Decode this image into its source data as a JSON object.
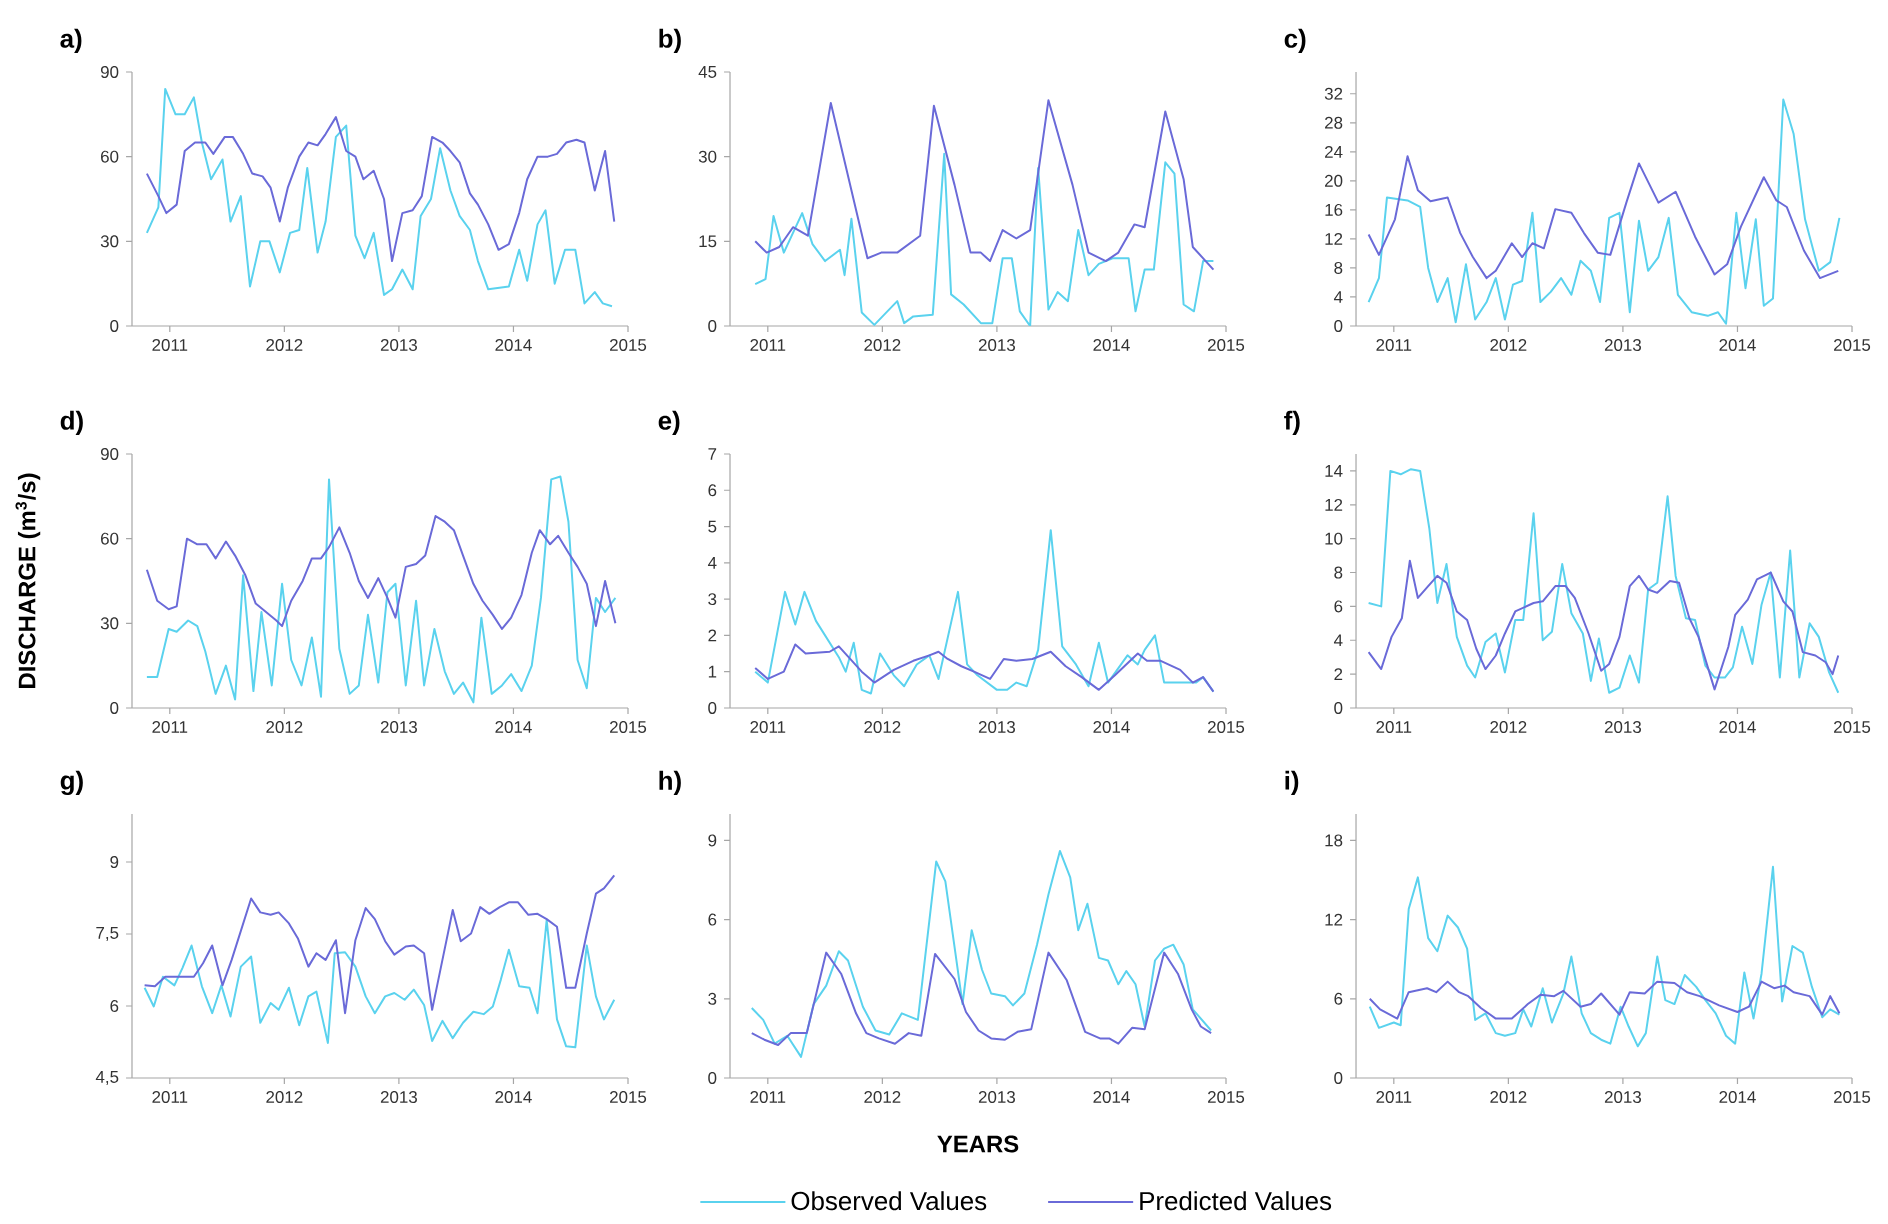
{
  "chart_data": [
    {
      "type": "line",
      "title": "a)",
      "xlim": [
        2010.67,
        2015
      ],
      "xticks": [
        2011,
        2012,
        2013,
        2014,
        2015
      ],
      "ylim": [
        0,
        90
      ],
      "yticks": [
        0,
        30,
        60,
        90
      ],
      "series": [
        {
          "color": "#5ad2ee",
          "x": [
            2010.8,
            2010.9,
            2010.96,
            2011.05,
            2011.13,
            2011.21,
            2011.28,
            2011.36,
            2011.46,
            2011.53,
            2011.62,
            2011.7,
            2011.79,
            2011.87,
            2011.96,
            2012.05,
            2012.13,
            2012.2,
            2012.29,
            2012.36,
            2012.45,
            2012.54,
            2012.62,
            2012.7,
            2012.78,
            2012.87,
            2012.94,
            2013.03,
            2013.12,
            2013.19,
            2013.28,
            2013.36,
            2013.45,
            2013.53,
            2013.62,
            2013.69,
            2013.78,
            2013.96,
            2014.05,
            2014.12,
            2014.21,
            2014.28,
            2014.36,
            2014.45,
            2014.54,
            2014.62,
            2014.71,
            2014.78,
            2014.86
          ],
          "values": [
            33,
            42,
            84,
            75,
            75,
            81,
            65,
            52,
            59,
            37,
            46,
            14,
            30,
            30,
            19,
            33,
            34,
            56,
            26,
            37,
            67,
            71,
            32,
            24,
            33,
            11,
            13,
            20,
            13,
            39,
            45,
            63,
            48,
            39,
            34,
            23,
            13,
            14,
            27,
            16,
            36,
            41,
            15,
            27,
            27,
            8,
            12,
            8,
            7
          ]
        },
        {
          "color": "#6a6ad8",
          "x": [
            2010.8,
            2010.9,
            2010.97,
            2011.06,
            2011.13,
            2011.22,
            2011.31,
            2011.38,
            2011.48,
            2011.55,
            2011.64,
            2011.72,
            2011.81,
            2011.88,
            2011.96,
            2012.03,
            2012.13,
            2012.21,
            2012.29,
            2012.36,
            2012.45,
            2012.54,
            2012.62,
            2012.69,
            2012.78,
            2012.87,
            2012.94,
            2013.03,
            2013.12,
            2013.2,
            2013.29,
            2013.38,
            2013.45,
            2013.53,
            2013.62,
            2013.69,
            2013.78,
            2013.87,
            2013.96,
            2014.05,
            2014.12,
            2014.21,
            2014.3,
            2014.38,
            2014.46,
            2014.55,
            2014.62,
            2014.71,
            2014.8,
            2014.88
          ],
          "values": [
            54,
            46,
            40,
            43,
            62,
            65,
            65,
            61,
            67,
            67,
            61,
            54,
            53,
            49,
            37,
            49,
            60,
            65,
            64,
            68,
            74,
            62,
            60,
            52,
            55,
            45,
            23,
            40,
            41,
            46,
            67,
            65,
            62,
            58,
            47,
            43,
            36,
            27,
            29,
            40,
            52,
            60,
            60,
            61,
            65,
            66,
            65,
            48,
            62,
            37
          ]
        }
      ]
    },
    {
      "type": "line",
      "title": "b)",
      "xlim": [
        2010.67,
        2015
      ],
      "xticks": [
        2011,
        2012,
        2013,
        2014,
        2015
      ],
      "ylim": [
        0,
        45
      ],
      "yticks": [
        0,
        15,
        30,
        45
      ],
      "series": [
        {
          "color": "#5ad2ee",
          "x": [
            2010.89,
            2010.98,
            2011.05,
            2011.14,
            2011.3,
            2011.39,
            2011.5,
            2011.63,
            2011.67,
            2011.73,
            2011.82,
            2011.93,
            2012.13,
            2012.19,
            2012.27,
            2012.44,
            2012.54,
            2012.6,
            2012.71,
            2012.86,
            2012.96,
            2013.05,
            2013.13,
            2013.2,
            2013.29,
            2013.36,
            2013.45,
            2013.53,
            2013.62,
            2013.71,
            2013.8,
            2013.89,
            2014.01,
            2014.15,
            2014.21,
            2014.29,
            2014.37,
            2014.47,
            2014.55,
            2014.63,
            2014.72,
            2014.8,
            2014.89
          ],
          "values": [
            7.4,
            8.3,
            19.5,
            13,
            20,
            14.5,
            11.5,
            13.5,
            9,
            19,
            2.4,
            0.2,
            4.4,
            0.5,
            1.7,
            2,
            30.5,
            5.6,
            3.8,
            0.5,
            0.5,
            12,
            12,
            2.6,
            0,
            28,
            2.9,
            6,
            4.4,
            17,
            9,
            11,
            12,
            12,
            2.6,
            10,
            10,
            29,
            27,
            3.8,
            2.6,
            11.5,
            11.5
          ]
        },
        {
          "color": "#6a6ad8",
          "x": [
            2010.89,
            2010.99,
            2011.1,
            2011.22,
            2011.35,
            2011.55,
            2011.87,
            2011.99,
            2012.13,
            2012.33,
            2012.45,
            2012.63,
            2012.77,
            2012.86,
            2012.94,
            2013.05,
            2013.17,
            2013.29,
            2013.45,
            2013.66,
            2013.8,
            2013.95,
            2014.06,
            2014.2,
            2014.29,
            2014.47,
            2014.63,
            2014.71,
            2014.89
          ],
          "values": [
            15,
            13,
            14,
            17.5,
            16,
            39.5,
            12,
            13,
            13,
            16,
            39,
            25,
            13,
            13,
            11.5,
            17,
            15.5,
            17,
            40,
            25,
            13,
            11.5,
            13,
            18,
            17.5,
            38,
            26,
            14,
            10
          ]
        }
      ]
    },
    {
      "type": "line",
      "title": "c)",
      "xlim": [
        2010.67,
        2015
      ],
      "xticks": [
        2011,
        2012,
        2013,
        2014,
        2015
      ],
      "ylim": [
        0,
        35
      ],
      "yticks": [
        0,
        4,
        8,
        12,
        16,
        20,
        24,
        28,
        32
      ],
      "series": [
        {
          "color": "#5ad2ee",
          "x": [
            2010.78,
            2010.87,
            2010.94,
            2011.12,
            2011.23,
            2011.3,
            2011.38,
            2011.47,
            2011.54,
            2011.63,
            2011.71,
            2011.81,
            2011.89,
            2011.97,
            2012.04,
            2012.12,
            2012.21,
            2012.28,
            2012.37,
            2012.46,
            2012.55,
            2012.63,
            2012.72,
            2012.8,
            2012.88,
            2012.97,
            2013.06,
            2013.14,
            2013.22,
            2013.31,
            2013.4,
            2013.48,
            2013.6,
            2013.74,
            2013.83,
            2013.9,
            2013.99,
            2014.07,
            2014.16,
            2014.23,
            2014.31,
            2014.4,
            2014.49,
            2014.59,
            2014.71,
            2014.81,
            2014.89
          ],
          "values": [
            3.3,
            6.6,
            17.7,
            17.3,
            16.4,
            8,
            3.3,
            6.6,
            0.5,
            8.5,
            0.9,
            3.3,
            6.6,
            0.9,
            5.7,
            6.2,
            15.6,
            3.3,
            4.7,
            6.6,
            4.3,
            9,
            7.6,
            3.3,
            14.9,
            15.6,
            1.9,
            14.5,
            7.6,
            9.5,
            14.9,
            4.3,
            1.9,
            1.4,
            1.9,
            0.3,
            15.6,
            5.2,
            14.7,
            2.8,
            3.8,
            31.2,
            26.5,
            14.7,
            7.6,
            8.8,
            14.9
          ]
        },
        {
          "color": "#6a6ad8",
          "x": [
            2010.78,
            2010.87,
            2011.01,
            2011.12,
            2011.21,
            2011.32,
            2011.47,
            2011.58,
            2011.69,
            2011.81,
            2011.89,
            2012.03,
            2012.12,
            2012.21,
            2012.31,
            2012.41,
            2012.55,
            2012.66,
            2012.78,
            2012.89,
            2013.03,
            2013.14,
            2013.31,
            2013.46,
            2013.63,
            2013.8,
            2013.91,
            2014.03,
            2014.23,
            2014.34,
            2014.43,
            2014.58,
            2014.72,
            2014.88
          ],
          "values": [
            12.6,
            9.8,
            14.7,
            23.4,
            18.7,
            17.2,
            17.7,
            12.8,
            9.5,
            6.6,
            7.6,
            11.4,
            9.5,
            11.4,
            10.7,
            16.1,
            15.6,
            12.8,
            10.1,
            9.8,
            17,
            22.4,
            17,
            18.5,
            12.3,
            7.1,
            8.5,
            13.7,
            20.5,
            17.3,
            16.4,
            10.4,
            6.6,
            7.6
          ]
        }
      ]
    },
    {
      "type": "line",
      "title": "d)",
      "ylabel": "DISCHARGE (m$^{3}$/s)",
      "xlim": [
        2010.67,
        2015
      ],
      "xticks": [
        2011,
        2012,
        2013,
        2014,
        2015
      ],
      "ylim": [
        0,
        90
      ],
      "yticks": [
        0,
        30,
        60,
        90
      ],
      "series": [
        {
          "color": "#5ad2ee",
          "x": [
            2010.8,
            2010.89,
            2010.99,
            2011.06,
            2011.16,
            2011.24,
            2011.31,
            2011.4,
            2011.49,
            2011.57,
            2011.64,
            2011.73,
            2011.8,
            2011.89,
            2011.98,
            2012.06,
            2012.15,
            2012.24,
            2012.32,
            2012.39,
            2012.48,
            2012.57,
            2012.65,
            2012.73,
            2012.82,
            2012.9,
            2012.97,
            2013.06,
            2013.15,
            2013.22,
            2013.31,
            2013.4,
            2013.48,
            2013.56,
            2013.65,
            2013.72,
            2013.81,
            2013.9,
            2013.98,
            2014.07,
            2014.16,
            2014.24,
            2014.33,
            2014.41,
            2014.48,
            2014.56,
            2014.64,
            2014.72,
            2014.8,
            2014.89
          ],
          "values": [
            11,
            11,
            28,
            27,
            31,
            29,
            20,
            5,
            15,
            3,
            47,
            6,
            34,
            8,
            44,
            17,
            8,
            25,
            4,
            81,
            21,
            5,
            8,
            33,
            9,
            41,
            44,
            8,
            38,
            8,
            28,
            13,
            5,
            9,
            2,
            32,
            5,
            8,
            12,
            6,
            15,
            39,
            81,
            82,
            66,
            17,
            7,
            39,
            34,
            39
          ]
        },
        {
          "color": "#6a6ad8",
          "x": [
            2010.8,
            2010.89,
            2010.99,
            2011.06,
            2011.15,
            2011.24,
            2011.32,
            2011.4,
            2011.49,
            2011.57,
            2011.66,
            2011.75,
            2011.84,
            2011.93,
            2011.98,
            2012.06,
            2012.16,
            2012.24,
            2012.32,
            2012.39,
            2012.48,
            2012.57,
            2012.65,
            2012.73,
            2012.82,
            2012.9,
            2012.97,
            2013.06,
            2013.15,
            2013.23,
            2013.32,
            2013.4,
            2013.48,
            2013.56,
            2013.65,
            2013.73,
            2013.82,
            2013.9,
            2013.98,
            2014.07,
            2014.16,
            2014.23,
            2014.32,
            2014.39,
            2014.48,
            2014.56,
            2014.64,
            2014.72,
            2014.8,
            2014.89
          ],
          "values": [
            49,
            38,
            35,
            36,
            60,
            58,
            58,
            53,
            59,
            54,
            47,
            37,
            34,
            31,
            29,
            38,
            45,
            53,
            53,
            57,
            64,
            55,
            45,
            39,
            46,
            39,
            32,
            50,
            51,
            54,
            68,
            66,
            63,
            54,
            44,
            38,
            33,
            28,
            32,
            40,
            55,
            63,
            58,
            61,
            55,
            50,
            44,
            29,
            45,
            30
          ]
        }
      ]
    },
    {
      "type": "line",
      "title": "e)",
      "xlim": [
        2010.67,
        2015
      ],
      "xticks": [
        2011,
        2012,
        2013,
        2014,
        2015
      ],
      "ylim": [
        0,
        7
      ],
      "yticks": [
        0,
        1,
        2,
        3,
        4,
        5,
        6,
        7
      ],
      "series": [
        {
          "color": "#5ad2ee",
          "x": [
            2010.89,
            2011.0,
            2011.15,
            2011.24,
            2011.32,
            2011.42,
            2011.62,
            2011.68,
            2011.75,
            2011.82,
            2011.9,
            2011.98,
            2012.1,
            2012.19,
            2012.3,
            2012.41,
            2012.49,
            2012.66,
            2012.74,
            2012.83,
            2013.0,
            2013.09,
            2013.17,
            2013.26,
            2013.36,
            2013.47,
            2013.57,
            2013.69,
            2013.8,
            2013.89,
            2013.97,
            2014.14,
            2014.23,
            2014.29,
            2014.38,
            2014.46,
            2014.66,
            2014.74,
            2014.8,
            2014.89
          ],
          "values": [
            1.0,
            0.7,
            3.2,
            2.3,
            3.2,
            2.4,
            1.4,
            1.0,
            1.8,
            0.5,
            0.4,
            1.5,
            0.9,
            0.6,
            1.2,
            1.45,
            0.8,
            3.2,
            1.2,
            0.9,
            0.5,
            0.5,
            0.7,
            0.6,
            1.6,
            4.9,
            1.7,
            1.2,
            0.6,
            1.8,
            0.7,
            1.45,
            1.2,
            1.6,
            2.0,
            0.7,
            0.7,
            0.7,
            0.85,
            0.45
          ]
        },
        {
          "color": "#6a6ad8",
          "x": [
            2010.89,
            2011.0,
            2011.14,
            2011.24,
            2011.33,
            2011.54,
            2011.62,
            2011.82,
            2011.93,
            2012.1,
            2012.27,
            2012.41,
            2012.49,
            2012.57,
            2012.69,
            2012.8,
            2012.94,
            2013.06,
            2013.17,
            2013.31,
            2013.47,
            2013.6,
            2013.74,
            2013.89,
            2014.03,
            2014.23,
            2014.31,
            2014.43,
            2014.6,
            2014.71,
            2014.8,
            2014.89
          ],
          "values": [
            1.1,
            0.8,
            1.0,
            1.75,
            1.5,
            1.55,
            1.7,
            1.0,
            0.7,
            1.05,
            1.3,
            1.45,
            1.55,
            1.35,
            1.15,
            1.0,
            0.8,
            1.35,
            1.3,
            1.35,
            1.55,
            1.15,
            0.85,
            0.5,
            0.9,
            1.5,
            1.3,
            1.3,
            1.05,
            0.7,
            0.85,
            0.45
          ]
        }
      ]
    },
    {
      "type": "line",
      "title": "f)",
      "xlim": [
        2010.67,
        2015
      ],
      "xticks": [
        2011,
        2012,
        2013,
        2014,
        2015
      ],
      "ylim": [
        0,
        15
      ],
      "yticks": [
        0,
        2,
        4,
        6,
        8,
        10,
        12,
        14
      ],
      "series": [
        {
          "color": "#5ad2ee",
          "x": [
            2010.78,
            2010.89,
            2010.97,
            2011.06,
            2011.15,
            2011.23,
            2011.31,
            2011.38,
            2011.46,
            2011.55,
            2011.64,
            2011.71,
            2011.8,
            2011.89,
            2011.97,
            2012.06,
            2012.13,
            2012.22,
            2012.3,
            2012.38,
            2012.47,
            2012.55,
            2012.65,
            2012.72,
            2012.79,
            2012.88,
            2012.97,
            2013.06,
            2013.14,
            2013.22,
            2013.3,
            2013.39,
            2013.46,
            2013.55,
            2013.63,
            2013.72,
            2013.8,
            2013.89,
            2013.96,
            2014.04,
            2014.13,
            2014.21,
            2014.29,
            2014.37,
            2014.46,
            2014.54,
            2014.63,
            2014.71,
            2014.8,
            2014.88
          ],
          "values": [
            6.2,
            6.0,
            14,
            13.8,
            14.1,
            14,
            10.6,
            6.2,
            8.5,
            4.2,
            2.5,
            1.8,
            3.9,
            4.4,
            2.1,
            5.2,
            5.2,
            11.5,
            4.0,
            4.5,
            8.5,
            5.6,
            4.4,
            1.6,
            4.1,
            0.9,
            1.2,
            3.1,
            1.5,
            7.0,
            7.4,
            12.5,
            7.8,
            5.3,
            5.2,
            2.5,
            1.8,
            1.8,
            2.4,
            4.8,
            2.6,
            6.1,
            8.0,
            1.8,
            9.3,
            1.8,
            5.0,
            4.2,
            2.1,
            0.9
          ]
        },
        {
          "color": "#6a6ad8",
          "x": [
            2010.78,
            2010.89,
            2010.98,
            2011.07,
            2011.14,
            2011.21,
            2011.3,
            2011.38,
            2011.46,
            2011.55,
            2011.64,
            2011.72,
            2011.8,
            2011.89,
            2011.97,
            2012.06,
            2012.22,
            2012.3,
            2012.41,
            2012.5,
            2012.58,
            2012.7,
            2012.81,
            2012.88,
            2012.97,
            2013.06,
            2013.14,
            2013.22,
            2013.3,
            2013.41,
            2013.49,
            2013.58,
            2013.66,
            2013.8,
            2013.92,
            2013.98,
            2014.09,
            2014.17,
            2014.29,
            2014.4,
            2014.48,
            2014.57,
            2014.68,
            2014.77,
            2014.83,
            2014.88
          ],
          "values": [
            3.3,
            2.3,
            4.2,
            5.3,
            8.7,
            6.5,
            7.2,
            7.8,
            7.4,
            5.7,
            5.2,
            3.5,
            2.3,
            3.1,
            4.4,
            5.7,
            6.2,
            6.3,
            7.2,
            7.2,
            6.5,
            4.4,
            2.2,
            2.6,
            4.2,
            7.2,
            7.8,
            7.0,
            6.8,
            7.5,
            7.4,
            5.3,
            4.2,
            1.1,
            3.6,
            5.5,
            6.4,
            7.6,
            8.0,
            6.3,
            5.7,
            3.3,
            3.1,
            2.7,
            2.0,
            3.1
          ]
        }
      ]
    },
    {
      "type": "line",
      "title": "g)",
      "xlim": [
        2010.67,
        2015
      ],
      "xticks": [
        2011,
        2012,
        2013,
        2014,
        2015
      ],
      "ylim": [
        4.5,
        10
      ],
      "yticks": [
        {
          "value": 4.5,
          "label": "4,5"
        },
        6,
        {
          "value": 7.5,
          "label": "7,5"
        },
        9
      ],
      "series": [
        {
          "color": "#5ad2ee",
          "x": [
            2010.78,
            2010.86,
            2010.94,
            2011.04,
            2011.11,
            2011.19,
            2011.28,
            2011.37,
            2011.45,
            2011.53,
            2011.62,
            2011.71,
            2011.79,
            2011.88,
            2011.95,
            2012.04,
            2012.13,
            2012.21,
            2012.28,
            2012.38,
            2012.44,
            2012.53,
            2012.62,
            2012.71,
            2012.79,
            2012.88,
            2012.96,
            2013.05,
            2013.13,
            2013.22,
            2013.29,
            2013.38,
            2013.47,
            2013.56,
            2013.65,
            2013.74,
            2013.82,
            2013.89,
            2013.96,
            2014.05,
            2014.14,
            2014.21,
            2014.29,
            2014.38,
            2014.46,
            2014.54,
            2014.64,
            2014.72,
            2014.79,
            2014.88
          ],
          "values": [
            6.38,
            5.99,
            6.61,
            6.43,
            6.79,
            7.26,
            6.41,
            5.85,
            6.43,
            5.78,
            6.82,
            7.03,
            5.65,
            6.06,
            5.92,
            6.38,
            5.6,
            6.2,
            6.3,
            5.23,
            7.1,
            7.12,
            6.82,
            6.2,
            5.85,
            6.2,
            6.27,
            6.13,
            6.34,
            6.02,
            5.27,
            5.69,
            5.33,
            5.65,
            5.88,
            5.83,
            5.99,
            6.55,
            7.17,
            6.41,
            6.38,
            5.85,
            7.79,
            5.72,
            5.16,
            5.14,
            7.26,
            6.2,
            5.72,
            6.13
          ]
        },
        {
          "color": "#6a6ad8",
          "x": [
            2010.78,
            2010.87,
            2010.96,
            2011.09,
            2011.21,
            2011.29,
            2011.37,
            2011.46,
            2011.54,
            2011.71,
            2011.79,
            2011.88,
            2011.95,
            2012.04,
            2012.12,
            2012.21,
            2012.28,
            2012.36,
            2012.45,
            2012.53,
            2012.62,
            2012.71,
            2012.79,
            2012.88,
            2012.96,
            2013.06,
            2013.13,
            2013.22,
            2013.29,
            2013.38,
            2013.47,
            2013.54,
            2013.63,
            2013.71,
            2013.79,
            2013.88,
            2013.96,
            2014.04,
            2014.13,
            2014.21,
            2014.29,
            2014.38,
            2014.46,
            2014.54,
            2014.64,
            2014.72,
            2014.79,
            2014.88
          ],
          "values": [
            6.43,
            6.41,
            6.61,
            6.61,
            6.61,
            6.89,
            7.26,
            6.43,
            6.96,
            8.24,
            7.95,
            7.9,
            7.95,
            7.72,
            7.4,
            6.82,
            7.1,
            6.96,
            7.37,
            5.85,
            7.37,
            8.04,
            7.81,
            7.35,
            7.07,
            7.24,
            7.26,
            7.1,
            5.92,
            6.96,
            8.0,
            7.35,
            7.51,
            8.06,
            7.92,
            8.06,
            8.16,
            8.16,
            7.9,
            7.92,
            7.81,
            7.65,
            6.38,
            6.38,
            7.51,
            8.34,
            8.45,
            8.72
          ]
        }
      ]
    },
    {
      "type": "line",
      "title": "h)",
      "xlabel": "YEARS",
      "legend": "bottom",
      "xlim": [
        2010.67,
        2015
      ],
      "xticks": [
        2011,
        2012,
        2013,
        2014,
        2015
      ],
      "ylim": [
        0,
        10
      ],
      "yticks": [
        0,
        3,
        6,
        9
      ],
      "series": [
        {
          "name": "Observed Values",
          "color": "#5ad2ee",
          "x": [
            2010.86,
            2010.96,
            2011.06,
            2011.17,
            2011.29,
            2011.4,
            2011.51,
            2011.62,
            2011.7,
            2011.83,
            2011.94,
            2012.06,
            2012.17,
            2012.31,
            2012.47,
            2012.55,
            2012.7,
            2012.78,
            2012.87,
            2012.95,
            2013.07,
            2013.14,
            2013.24,
            2013.35,
            2013.45,
            2013.55,
            2013.64,
            2013.71,
            2013.79,
            2013.89,
            2013.97,
            2014.06,
            2014.13,
            2014.21,
            2014.29,
            2014.38,
            2014.46,
            2014.54,
            2014.63,
            2014.71,
            2014.87
          ],
          "values": [
            2.65,
            2.2,
            1.3,
            1.6,
            0.8,
            2.8,
            3.5,
            4.8,
            4.45,
            2.7,
            1.8,
            1.65,
            2.45,
            2.2,
            8.2,
            7.45,
            2.8,
            5.6,
            4.1,
            3.2,
            3.1,
            2.75,
            3.2,
            5.05,
            6.95,
            8.6,
            7.6,
            5.6,
            6.6,
            4.55,
            4.45,
            3.55,
            4.05,
            3.55,
            1.95,
            4.45,
            4.9,
            5.05,
            4.3,
            2.6,
            1.8
          ]
        },
        {
          "name": "Predicted Values",
          "color": "#6a6ad8",
          "x": [
            2010.86,
            2010.97,
            2011.09,
            2011.2,
            2011.34,
            2011.51,
            2011.64,
            2011.77,
            2011.86,
            2011.97,
            2012.11,
            2012.23,
            2012.34,
            2012.46,
            2012.63,
            2012.73,
            2012.84,
            2012.95,
            2013.07,
            2013.18,
            2013.3,
            2013.45,
            2013.61,
            2013.77,
            2013.9,
            2013.98,
            2014.06,
            2014.18,
            2014.29,
            2014.46,
            2014.58,
            2014.7,
            2014.78,
            2014.87
          ],
          "values": [
            1.7,
            1.45,
            1.25,
            1.7,
            1.7,
            4.75,
            3.95,
            2.45,
            1.7,
            1.5,
            1.3,
            1.7,
            1.6,
            4.7,
            3.75,
            2.5,
            1.8,
            1.5,
            1.45,
            1.75,
            1.85,
            4.75,
            3.7,
            1.75,
            1.5,
            1.5,
            1.3,
            1.9,
            1.85,
            4.75,
            3.95,
            2.6,
            1.95,
            1.7
          ]
        }
      ]
    },
    {
      "type": "line",
      "title": "i)",
      "xlim": [
        2010.67,
        2015
      ],
      "xticks": [
        2011,
        2012,
        2013,
        2014,
        2015
      ],
      "ylim": [
        0,
        20
      ],
      "yticks": [
        0,
        6,
        12,
        18
      ],
      "series": [
        {
          "color": "#5ad2ee",
          "x": [
            2010.79,
            2010.87,
            2011.0,
            2011.06,
            2011.13,
            2011.21,
            2011.3,
            2011.38,
            2011.47,
            2011.56,
            2011.64,
            2011.71,
            2011.8,
            2011.89,
            2011.97,
            2012.06,
            2012.13,
            2012.2,
            2012.3,
            2012.38,
            2012.48,
            2012.55,
            2012.64,
            2012.72,
            2012.81,
            2012.89,
            2012.98,
            2013.05,
            2013.13,
            2013.2,
            2013.3,
            2013.37,
            2013.45,
            2013.54,
            2013.64,
            2013.72,
            2013.81,
            2013.9,
            2013.98,
            2014.06,
            2014.14,
            2014.21,
            2014.31,
            2014.39,
            2014.48,
            2014.57,
            2014.65,
            2014.74,
            2014.81,
            2014.89
          ],
          "values": [
            5.4,
            3.8,
            4.2,
            4.0,
            12.8,
            15.2,
            10.6,
            9.6,
            12.3,
            11.4,
            9.8,
            4.4,
            4.9,
            3.4,
            3.2,
            3.4,
            5.2,
            3.9,
            6.8,
            4.2,
            6.4,
            9.2,
            4.9,
            3.4,
            2.9,
            2.6,
            5.4,
            3.9,
            2.4,
            3.4,
            9.2,
            5.9,
            5.6,
            7.8,
            6.9,
            5.9,
            4.9,
            3.2,
            2.6,
            8.0,
            4.5,
            7.9,
            16.0,
            5.8,
            10.0,
            9.5,
            6.9,
            4.6,
            5.2,
            4.8
          ]
        },
        {
          "color": "#6a6ad8",
          "x": [
            2010.79,
            2010.88,
            2011.03,
            2011.13,
            2011.29,
            2011.37,
            2011.47,
            2011.57,
            2011.65,
            2011.76,
            2011.89,
            2012.03,
            2012.17,
            2012.28,
            2012.4,
            2012.48,
            2012.63,
            2012.72,
            2012.81,
            2012.97,
            2013.06,
            2013.19,
            2013.3,
            2013.45,
            2013.56,
            2013.67,
            2013.84,
            2014.0,
            2014.1,
            2014.21,
            2014.32,
            2014.41,
            2014.49,
            2014.63,
            2014.74,
            2014.81,
            2014.89
          ],
          "values": [
            6.0,
            5.2,
            4.5,
            6.5,
            6.8,
            6.5,
            7.3,
            6.5,
            6.2,
            5.3,
            4.5,
            4.5,
            5.6,
            6.3,
            6.2,
            6.6,
            5.4,
            5.6,
            6.4,
            4.8,
            6.5,
            6.4,
            7.3,
            7.2,
            6.5,
            6.2,
            5.5,
            5.0,
            5.4,
            7.3,
            6.8,
            7.0,
            6.5,
            6.2,
            4.8,
            6.2,
            4.9
          ]
        }
      ]
    }
  ]
}
